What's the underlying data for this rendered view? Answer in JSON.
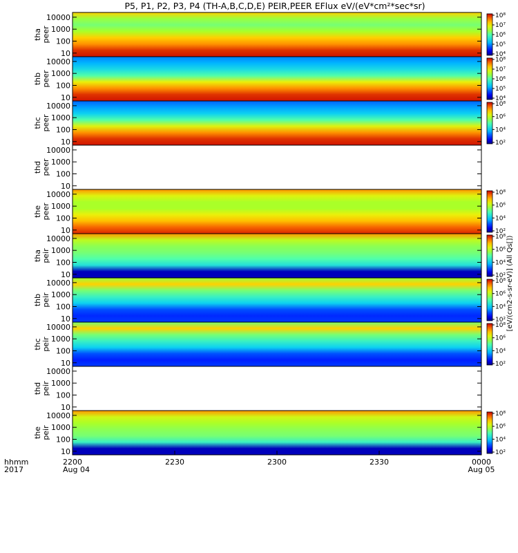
{
  "title": "P5, P1, P2, P3, P4 (TH-A,B,C,D,E) PEIR,PEER EFlux eV/(eV*cm²*sec*sr)",
  "chart_data": {
    "type": "heatmap",
    "x_ticks": [
      "2200",
      "2230",
      "2300",
      "2330",
      "0000"
    ],
    "x_dates": {
      "start": "Aug 04",
      "end": "Aug 05"
    },
    "x_row_labels": [
      "hhmm",
      "2017"
    ],
    "y_scale": "log",
    "y_ticks": [
      "10",
      "100",
      "1000",
      "10000"
    ],
    "y_range": [
      5,
      25000
    ],
    "colorbar_ticks_a": [
      "10⁴",
      "10⁵",
      "10⁶",
      "10⁷",
      "10⁸"
    ],
    "colorbar_ticks_b": [
      "10²",
      "10⁴",
      "10⁶",
      "10⁸"
    ],
    "colorbar_title": "[eV/(cm2-s-sr-eV)] (All Qs[])",
    "panels": [
      {
        "probe": "tha",
        "species": "peer",
        "data": true,
        "cb": "a",
        "profile": [
          0.98,
          0.95,
          0.85,
          0.78,
          0.62,
          0.55,
          0.6,
          0.78
        ]
      },
      {
        "probe": "thb",
        "species": "peer",
        "data": true,
        "cb": "a",
        "profile": [
          0.98,
          0.95,
          0.85,
          0.72,
          0.5,
          0.38,
          0.3,
          0.25
        ]
      },
      {
        "probe": "thc",
        "species": "peer",
        "data": true,
        "cb": "b",
        "profile": [
          0.98,
          0.95,
          0.85,
          0.7,
          0.5,
          0.35,
          0.28,
          0.22
        ]
      },
      {
        "probe": "thd",
        "species": "peer",
        "data": false
      },
      {
        "probe": "the",
        "species": "peer",
        "data": true,
        "cb": "b",
        "profile": [
          0.96,
          0.9,
          0.8,
          0.72,
          0.62,
          0.62,
          0.7,
          0.85
        ]
      },
      {
        "probe": "tha",
        "species": "peir",
        "data": true,
        "cb": "b",
        "profile": [
          0.05,
          0.05,
          0.4,
          0.5,
          0.55,
          0.58,
          0.65,
          0.85
        ]
      },
      {
        "probe": "thb",
        "species": "peir",
        "data": true,
        "cb": "b",
        "profile": [
          0.18,
          0.16,
          0.2,
          0.35,
          0.45,
          0.55,
          0.78,
          0.6
        ]
      },
      {
        "probe": "thc",
        "species": "peir",
        "data": true,
        "cb": "b",
        "profile": [
          0.18,
          0.15,
          0.2,
          0.35,
          0.45,
          0.55,
          0.78,
          0.55
        ]
      },
      {
        "probe": "thd",
        "species": "peir",
        "data": false
      },
      {
        "probe": "the",
        "species": "peir",
        "data": true,
        "cb": "b",
        "profile": [
          0.05,
          0.05,
          0.45,
          0.55,
          0.58,
          0.62,
          0.68,
          0.85
        ]
      }
    ]
  }
}
